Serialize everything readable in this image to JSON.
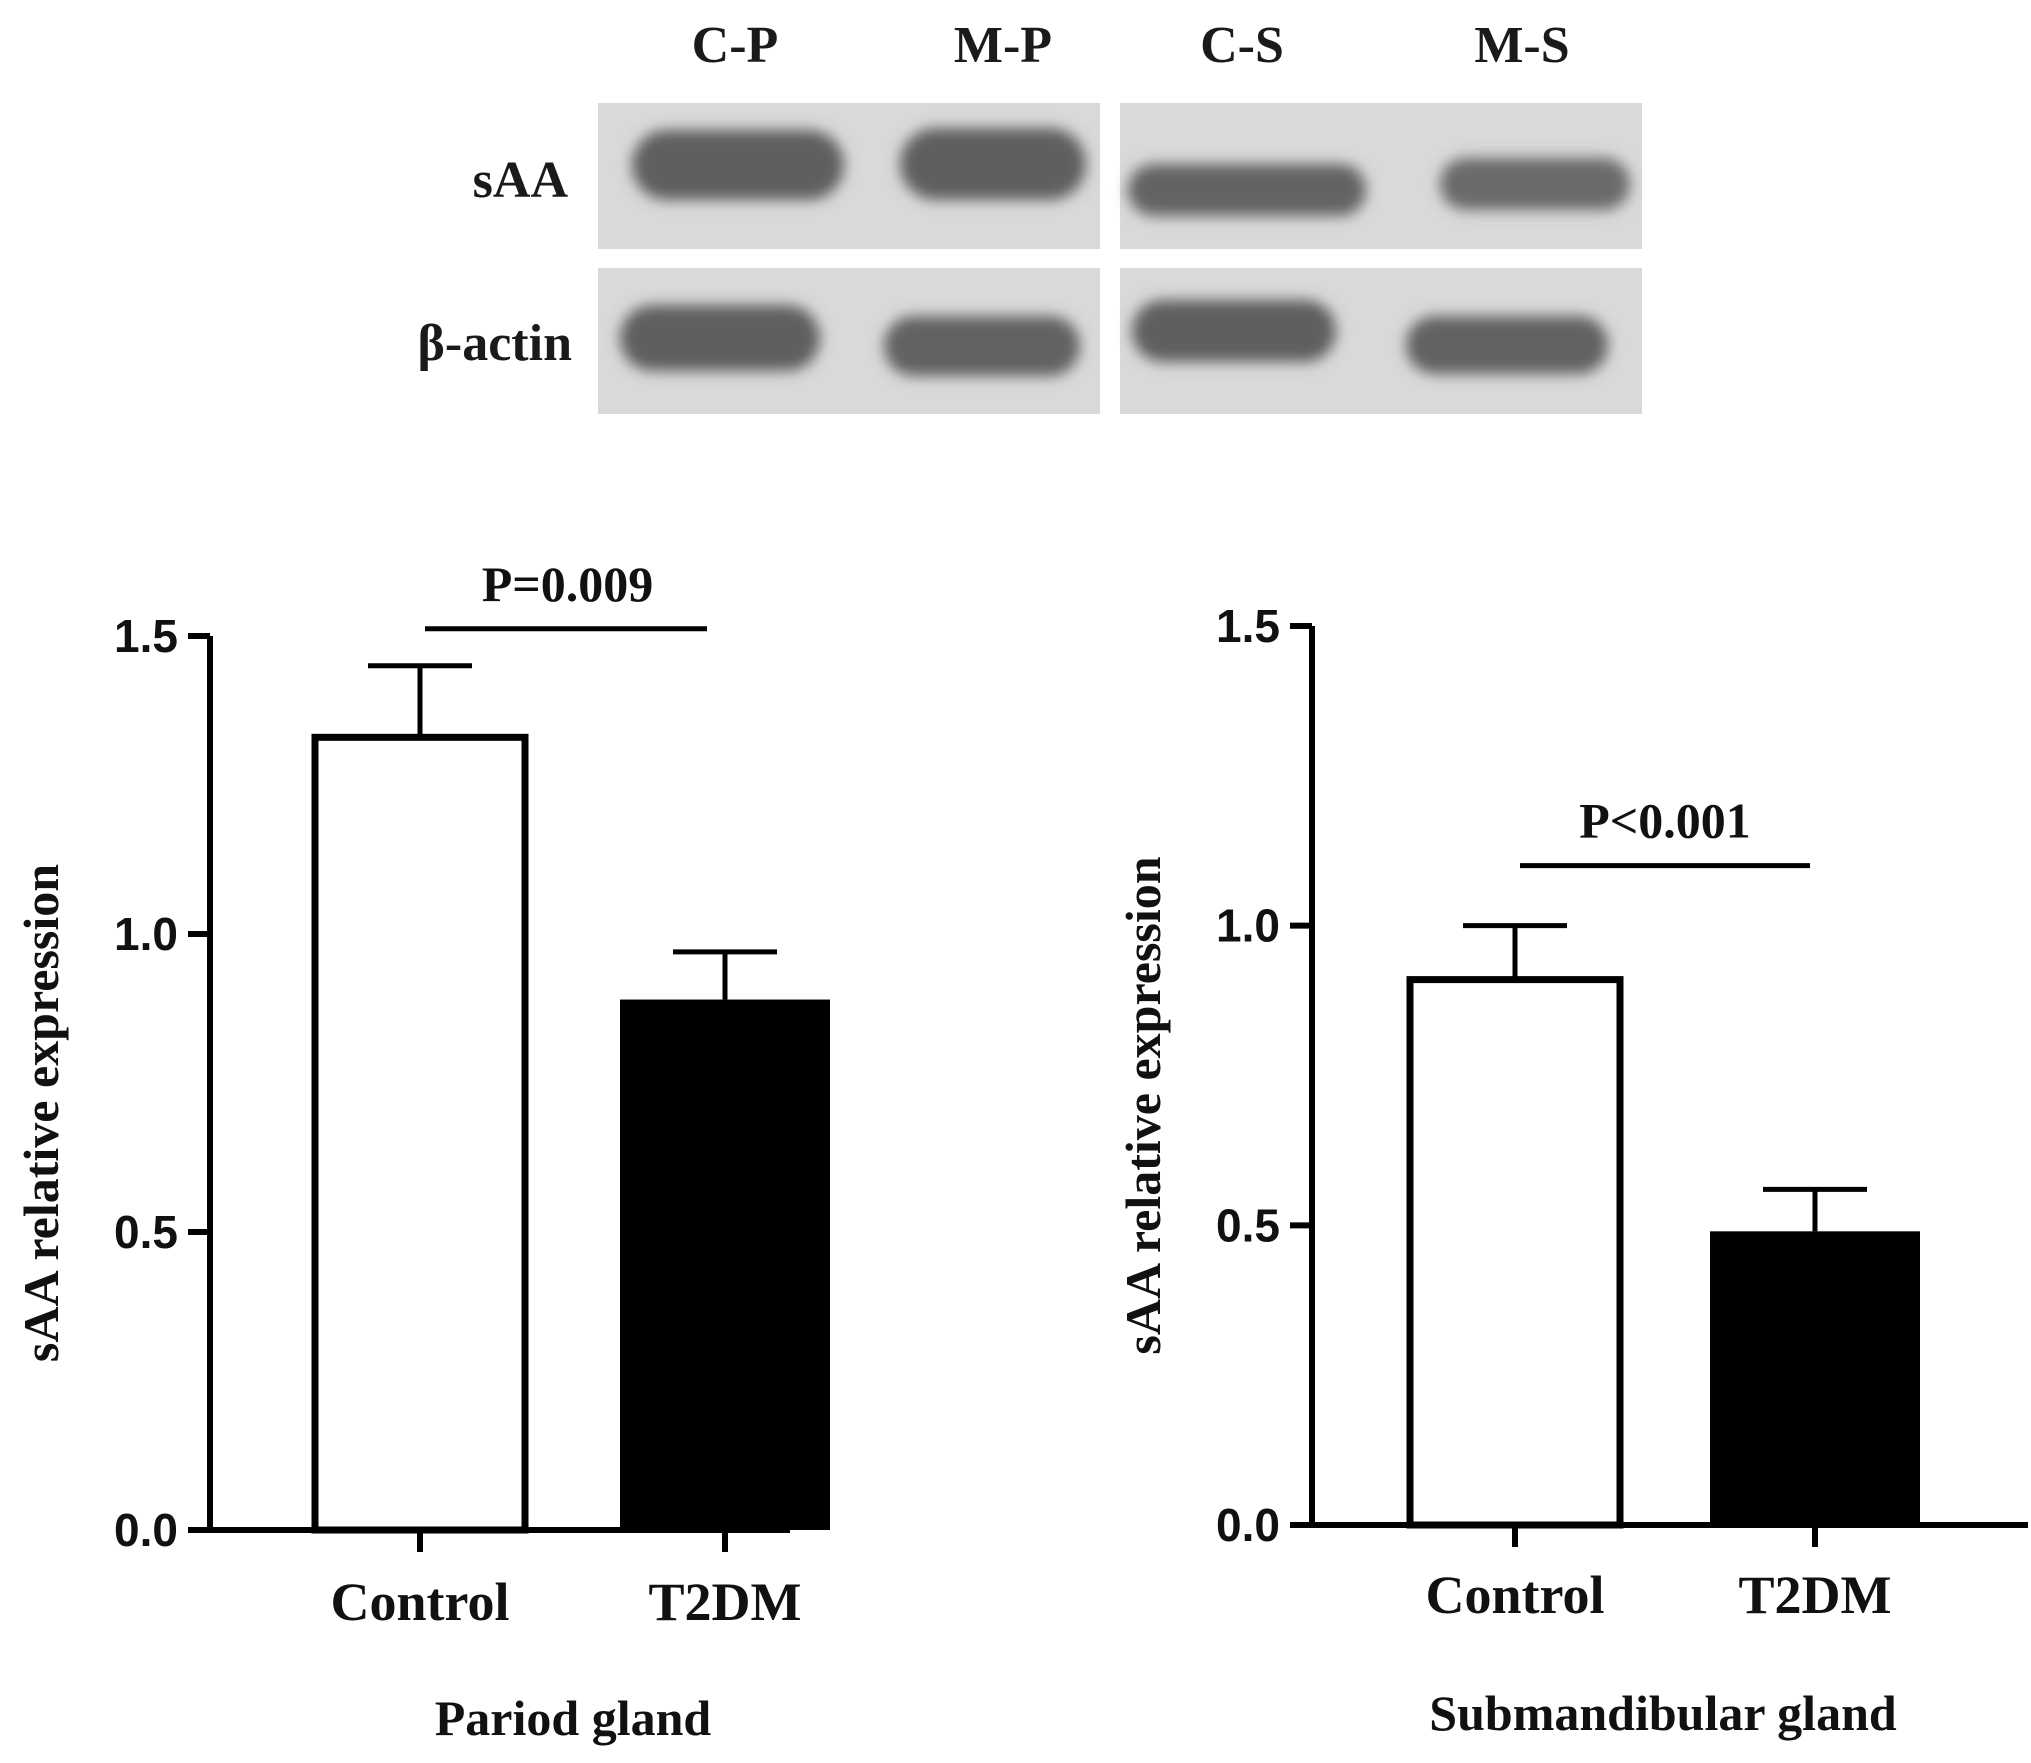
{
  "blot": {
    "lanes": [
      "C-P",
      "M-P",
      "C-S",
      "M-S"
    ],
    "rows": [
      "sAA",
      "β-actin"
    ],
    "colors": {
      "membrane": "#d9d9d9",
      "band": "#5e5e5e"
    }
  },
  "chart_data": [
    {
      "type": "bar",
      "categories": [
        "Control",
        "T2DM"
      ],
      "values": [
        1.33,
        0.89
      ],
      "errors": [
        0.12,
        0.08
      ],
      "fills": [
        "#ffffff",
        "#000000"
      ],
      "ylim": [
        0,
        1.5
      ],
      "yticks": [
        "0.0",
        "0.5",
        "1.0",
        "1.5"
      ],
      "ylabel": "sAA relative expression",
      "xlabel": "Pariod gland",
      "annotation": "P=0.009"
    },
    {
      "type": "bar",
      "categories": [
        "Control",
        "T2DM"
      ],
      "values": [
        0.91,
        0.49
      ],
      "errors": [
        0.09,
        0.07
      ],
      "fills": [
        "#ffffff",
        "#000000"
      ],
      "ylim": [
        0,
        1.5
      ],
      "yticks": [
        "0.0",
        "0.5",
        "1.0",
        "1.5"
      ],
      "ylabel": "sAA relative expression",
      "xlabel": "Submandibular gland",
      "annotation": "P<0.001"
    }
  ]
}
